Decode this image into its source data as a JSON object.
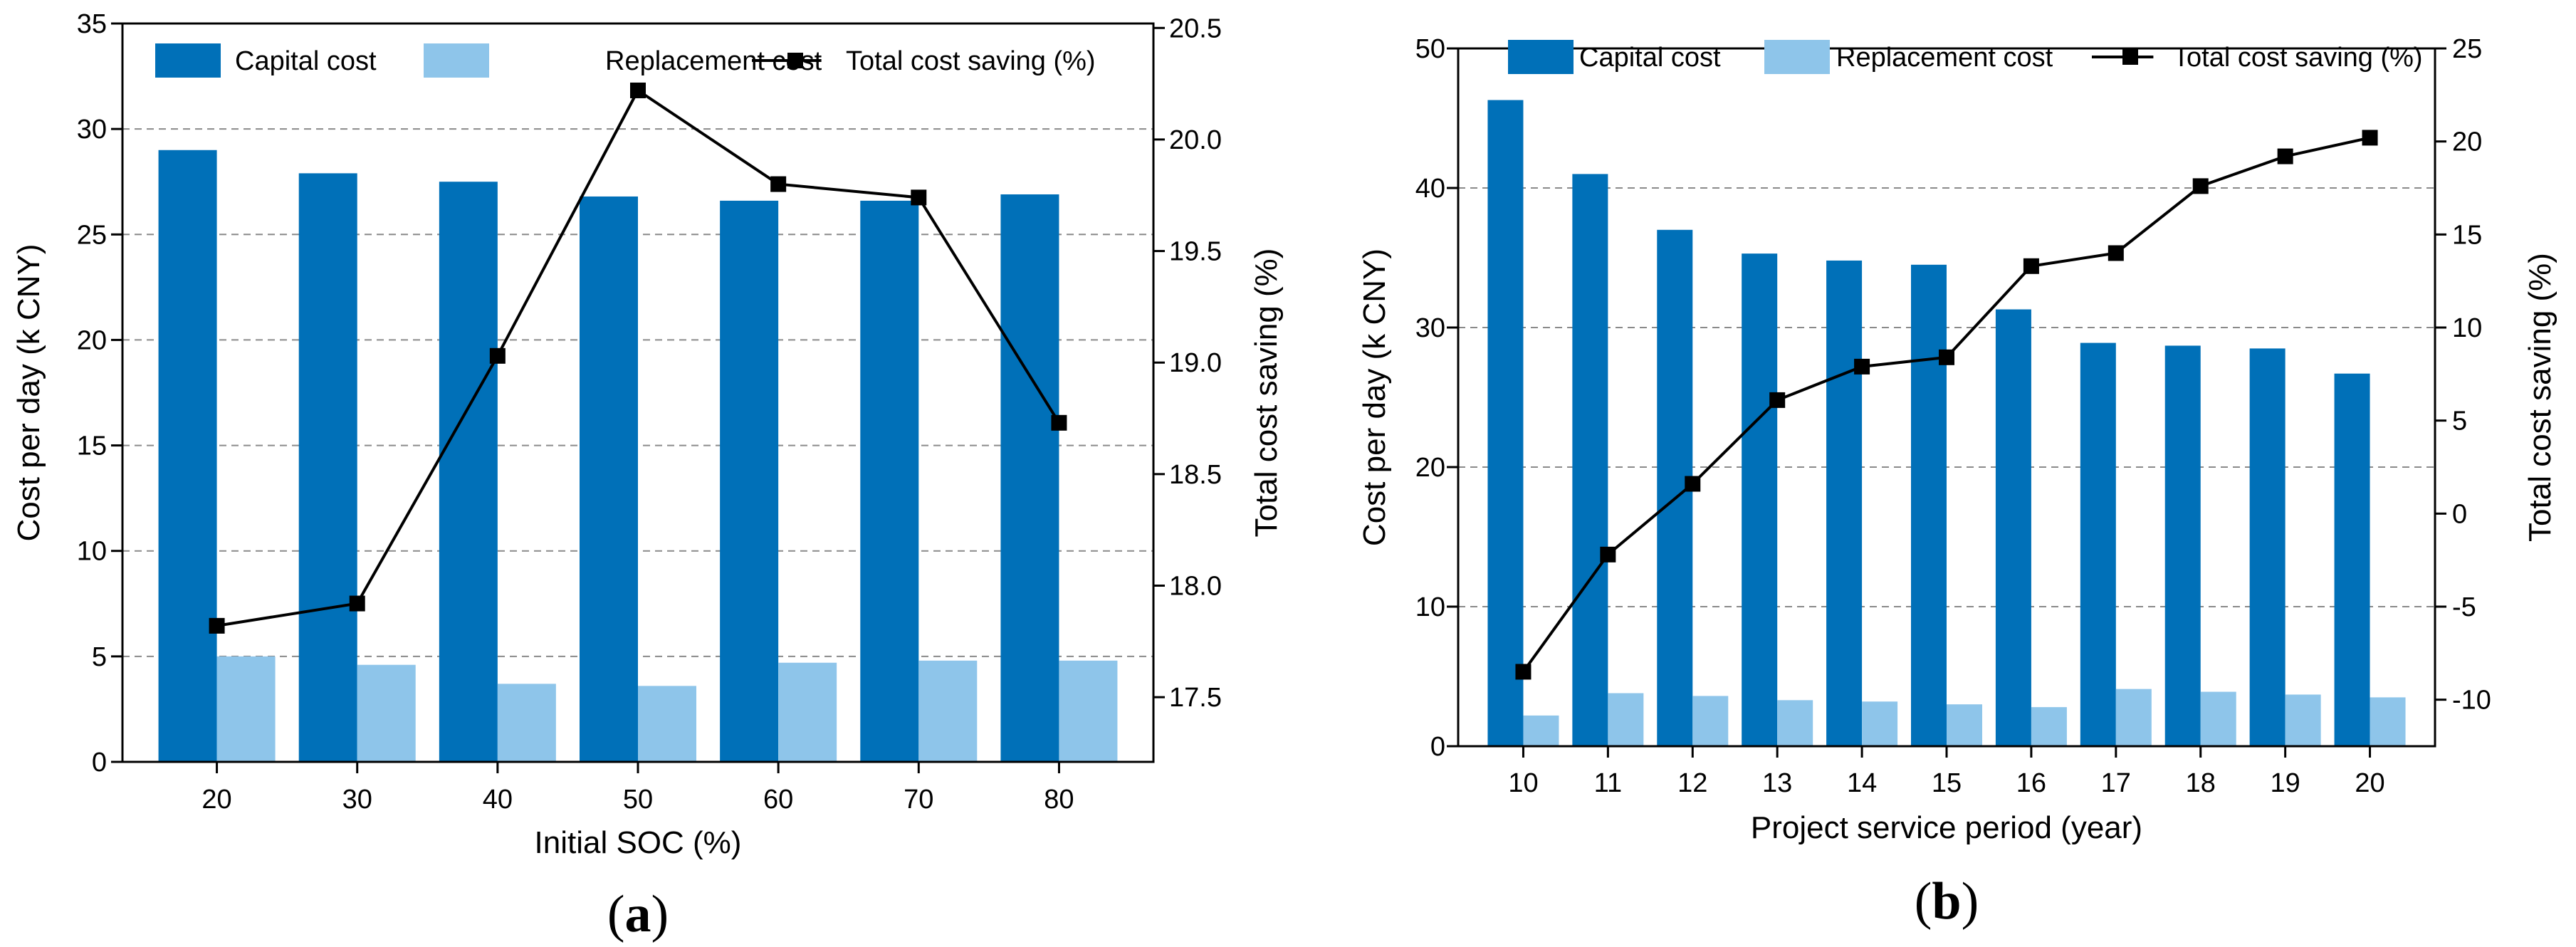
{
  "chart_data": [
    {
      "type": "bar",
      "panel_label": "(a)",
      "panel_letter": "a",
      "categories": [
        "20",
        "30",
        "40",
        "50",
        "60",
        "70",
        "80"
      ],
      "series": [
        {
          "name": "Capital cost",
          "axis": "left",
          "color": "#0070b8",
          "values": [
            29.0,
            27.9,
            27.5,
            26.8,
            26.6,
            26.6,
            26.9
          ]
        },
        {
          "name": "Replacement cost",
          "axis": "left",
          "color": "#8ec5ea",
          "values": [
            5.0,
            4.6,
            3.7,
            3.6,
            4.7,
            4.8,
            4.8
          ]
        },
        {
          "name": "Total cost saving (%)",
          "axis": "right",
          "type": "line",
          "color": "#000000",
          "values": [
            17.82,
            17.92,
            19.03,
            20.22,
            19.8,
            19.74,
            18.73
          ]
        }
      ],
      "xlabel": "Initial SOC (%)",
      "ylabel": "Cost per day (k CNY)",
      "y2label": "Total cost saving (%)",
      "ylim": [
        0,
        35
      ],
      "yticks": [
        0,
        5,
        10,
        15,
        20,
        25,
        30,
        35
      ],
      "y2lim": [
        17.21,
        20.52
      ],
      "y2ticks": [
        17.5,
        18.0,
        18.5,
        19.0,
        19.5,
        20.0,
        20.5
      ],
      "y2tick_labels": [
        "17.5",
        "18.0",
        "18.5",
        "19.0",
        "19.5",
        "20.0",
        "20.5"
      ],
      "grid": "horizontal dashed",
      "legend": "top"
    },
    {
      "type": "bar",
      "panel_label": "(b)",
      "panel_letter": "b",
      "categories": [
        "10",
        "11",
        "12",
        "13",
        "14",
        "15",
        "16",
        "17",
        "18",
        "19",
        "20"
      ],
      "series": [
        {
          "name": "Capital cost",
          "axis": "left",
          "color": "#0070b8",
          "values": [
            46.3,
            41.0,
            37.0,
            35.3,
            34.8,
            34.5,
            31.3,
            28.9,
            28.7,
            28.5,
            26.7
          ]
        },
        {
          "name": "Replacement cost",
          "axis": "left",
          "color": "#8ec5ea",
          "values": [
            2.2,
            3.8,
            3.6,
            3.3,
            3.2,
            3.0,
            2.8,
            4.1,
            3.9,
            3.7,
            3.5
          ]
        },
        {
          "name": "Total cost saving (%)",
          "axis": "right",
          "type": "line",
          "color": "#000000",
          "values": [
            -8.5,
            -2.2,
            1.6,
            6.1,
            7.9,
            8.4,
            13.3,
            14.0,
            17.6,
            19.2,
            20.2
          ]
        }
      ],
      "xlabel": "Project service period (year)",
      "ylabel": "Cost per day (k CNY)",
      "y2label": "Total cost saving (%)",
      "ylim": [
        0,
        50
      ],
      "yticks": [
        0,
        10,
        20,
        30,
        40,
        50
      ],
      "y2lim": [
        -12.5,
        25
      ],
      "y2ticks": [
        -10,
        -5,
        0,
        5,
        10,
        15,
        20,
        25
      ],
      "y2tick_labels": [
        "-10",
        "-5",
        "0",
        "5",
        "10",
        "15",
        "20",
        "25"
      ],
      "grid": "horizontal dashed",
      "legend": "top"
    }
  ]
}
